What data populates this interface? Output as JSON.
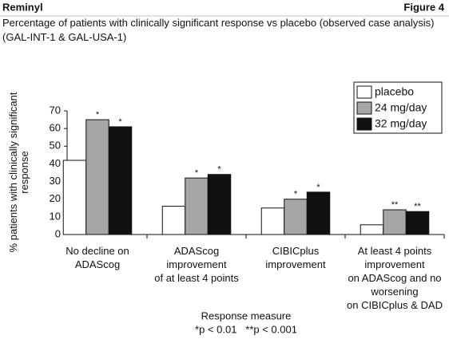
{
  "chart_data": {
    "type": "bar",
    "header": "Reminyl",
    "figure_label": "Figure 4",
    "title": "Percentage of patients with clinically significant response vs placebo (observed case analysis) (GAL-INT-1 & GAL-USA-1)",
    "y_label": "% patients with clinically significant response",
    "x_label": "Response measure",
    "footnote": "*p < 0.01   **p < 0.001",
    "categories": [
      "No decline on\nADAScog",
      "ADAScog\nimprovement\nof at least 4 points",
      "CIBICplus\nimprovement",
      "At least 4 points\nimprovement\non ADAScog and no\nworsening\non CIBICplus & DAD"
    ],
    "series": [
      {
        "name": "placebo",
        "color": "#ffffff",
        "values": [
          42,
          16,
          15,
          5.5
        ],
        "markers": [
          null,
          null,
          null,
          null
        ]
      },
      {
        "name": "24 mg/day",
        "color": "#a6a6a6",
        "values": [
          65,
          32,
          20,
          14
        ],
        "markers": [
          "*",
          "*",
          "*",
          "**"
        ]
      },
      {
        "name": "32 mg/day",
        "color": "#111111",
        "values": [
          61,
          34,
          24,
          13
        ],
        "markers": [
          "*",
          "*",
          "*",
          "**"
        ]
      }
    ],
    "ylim": [
      0,
      70
    ],
    "yticks": [
      0,
      10,
      20,
      30,
      40,
      50,
      60,
      70
    ],
    "legend": "top-right"
  }
}
